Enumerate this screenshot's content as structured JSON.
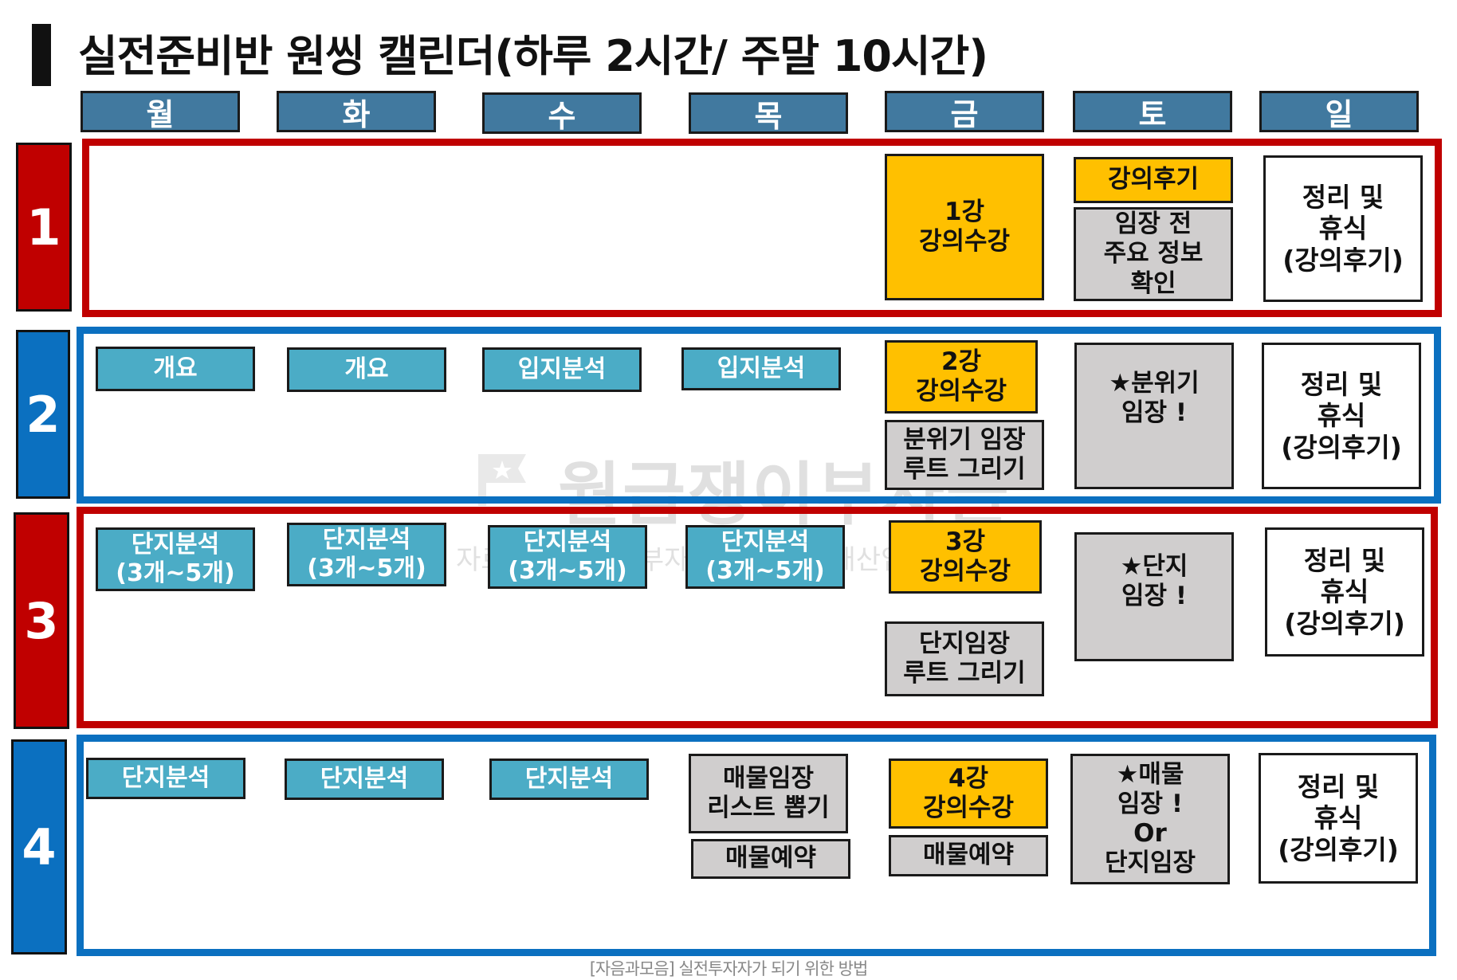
{
  "title": "실전준비반 원씽 캘린더(하루 2시간/ 주말 10시간)",
  "days": [
    "월",
    "화",
    "수",
    "목",
    "금",
    "토",
    "일"
  ],
  "weeks": [
    "1",
    "2",
    "3",
    "4"
  ],
  "cells": {
    "w1": {
      "fri": "1강\n강의수강",
      "sat_top": "강의후기",
      "sat_bottom": "임장 전\n주요 정보\n확인",
      "sun": "정리 및\n휴식\n(강의후기)"
    },
    "w2": {
      "mon": "개요",
      "tue": "개요",
      "wed": "입지분석",
      "thu": "입지분석",
      "fri_top": "2강\n강의수강",
      "fri_bottom": "분위기 임장\n루트 그리기",
      "sat": "★분위기\n임장 !",
      "sun": "정리 및\n휴식\n(강의후기)"
    },
    "w3": {
      "mon": "단지분석\n(3개~5개)",
      "tue": "단지분석\n(3개~5개)",
      "wed": "단지분석\n(3개~5개)",
      "thu": "단지분석\n(3개~5개)",
      "fri_top": "3강\n강의수강",
      "fri_bottom": "단지임장\n루트 그리기",
      "sat": "★단지\n임장 !",
      "sun": "정리 및\n휴식\n(강의후기)"
    },
    "w4": {
      "mon": "단지분석",
      "tue": "단지분석",
      "wed": "단지분석",
      "thu_top": "매물임장\n리스트 뽑기",
      "thu_bottom": "매물예약",
      "fri_top": "4강\n강의수강",
      "fri_bottom": "매물예약",
      "sat": "★매물\n임장 !\nOr\n단지임장",
      "sun": "정리 및\n휴식\n(강의후기)"
    }
  },
  "watermark": {
    "main": "월급쟁이부자들",
    "sub": "이 자료는 월급쟁이부자들에 귀속한 재산입니다"
  },
  "footer": "[자음과모음] 실전투자자가 되기 위한 방법",
  "colors": {
    "red": "#c00000",
    "blue": "#0b70c0",
    "day_header": "#41799f",
    "teal": "#4bacc6",
    "gold": "#ffc000",
    "gray": "#d0cece"
  }
}
